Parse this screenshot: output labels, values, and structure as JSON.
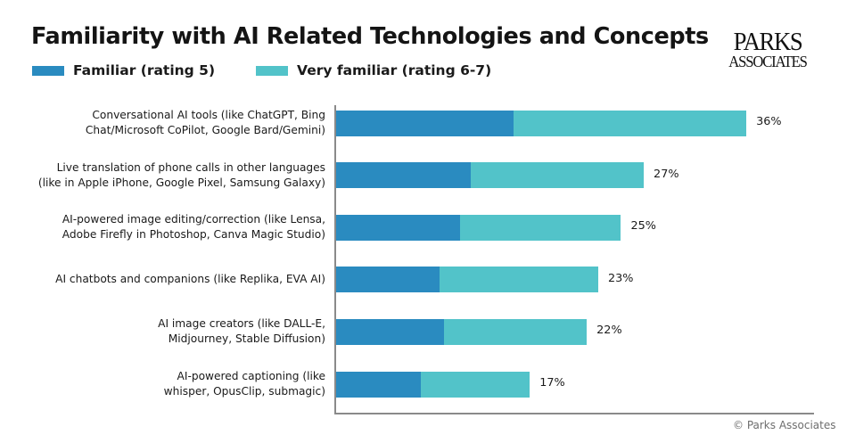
{
  "chart_data": {
    "type": "bar",
    "orientation": "horizontal",
    "stacked": true,
    "title": "Familiarity with AI Related Technologies and Concepts",
    "xlabel": "",
    "ylabel": "",
    "xlim": [
      0,
      42
    ],
    "grid": false,
    "legend_position": "top-left",
    "categories": [
      [
        "Conversational AI tools (like ChatGPT, Bing",
        "Chat/Microsoft CoPilot, Google Bard/Gemini)"
      ],
      [
        "Live translation of phone calls in other languages",
        "(like in Apple iPhone, Google Pixel, Samsung Galaxy)"
      ],
      [
        "AI-powered image editing/correction (like Lensa,",
        "Adobe Firefly in Photoshop, Canva Magic Studio)"
      ],
      [
        "AI chatbots and companions (like Replika, EVA AI)"
      ],
      [
        "AI image creators (like DALL-E,",
        "Midjourney, Stable Diffusion)"
      ],
      [
        "AI-powered captioning (like",
        "whisper, OpusClip, submagic)"
      ]
    ],
    "series": [
      {
        "name": "Familiar (rating 5)",
        "color": "#2a8bc0",
        "values": [
          15.6,
          11.8,
          10.9,
          9.1,
          9.5,
          7.4
        ]
      },
      {
        "name": "Very familiar (rating 6-7)",
        "color": "#52c3c9",
        "values": [
          20.4,
          15.2,
          14.1,
          13.9,
          12.5,
          9.6
        ]
      }
    ],
    "totals": [
      36,
      27,
      25,
      23,
      22,
      17
    ],
    "total_labels": [
      "36%",
      "27%",
      "25%",
      "23%",
      "22%",
      "17%"
    ]
  },
  "branding": {
    "logo_line1": "PARKS",
    "logo_line2": "ASSOCIATES",
    "copyright": "© Parks Associates"
  }
}
